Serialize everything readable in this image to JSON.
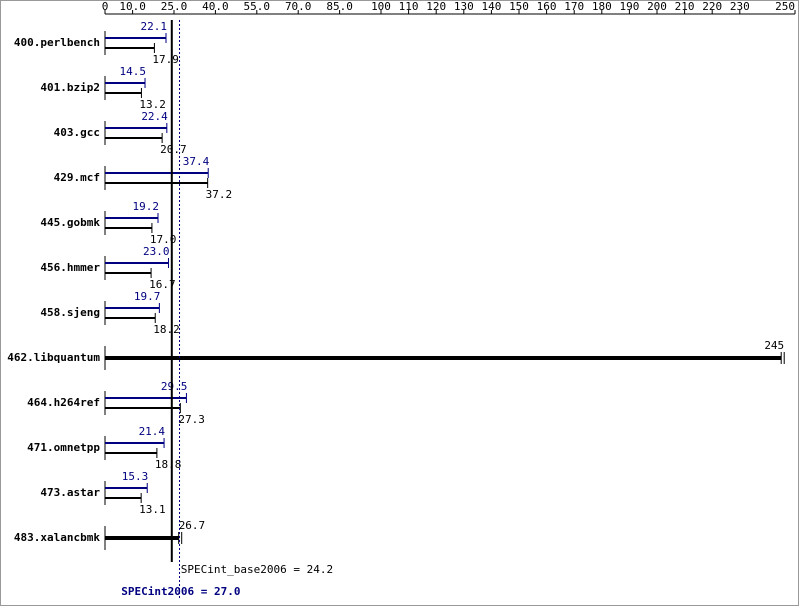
{
  "chart_data": {
    "type": "bar",
    "orientation": "horizontal",
    "categories": [
      "400.perlbench",
      "401.bzip2",
      "403.gcc",
      "429.mcf",
      "445.gobmk",
      "456.hmmer",
      "458.sjeng",
      "462.libquantum",
      "464.h264ref",
      "471.omnetpp",
      "473.astar",
      "483.xalancbmk"
    ],
    "series": [
      {
        "color": "#000080",
        "values": [
          22.1,
          14.5,
          22.4,
          37.4,
          19.2,
          23.0,
          19.7,
          null,
          29.5,
          21.4,
          15.3,
          null
        ],
        "value_labels": [
          "22.1",
          "14.5",
          "22.4",
          "37.4",
          "19.2",
          "23.0",
          "19.7",
          null,
          "29.5",
          "21.4",
          "15.3",
          null
        ]
      },
      {
        "color": "#000000",
        "values": [
          17.9,
          13.2,
          20.7,
          37.2,
          17.0,
          16.7,
          18.2,
          245,
          27.3,
          18.8,
          13.1,
          26.7
        ],
        "value_labels": [
          "17.9",
          "13.2",
          "20.7",
          "37.2",
          "17.0",
          "16.7",
          "18.2",
          "245",
          "27.3",
          "18.8",
          "13.1",
          "26.7"
        ]
      }
    ],
    "xlim": [
      0,
      250
    ],
    "xticks": [
      0,
      {
        "value": 10,
        "label": "10.0"
      },
      {
        "value": 25,
        "label": "25.0"
      },
      {
        "value": 40,
        "label": "40.0"
      },
      {
        "value": 55,
        "label": "55.0"
      },
      {
        "value": 70,
        "label": "70.0"
      },
      {
        "value": 85,
        "label": "85.0"
      },
      100,
      110,
      120,
      130,
      140,
      150,
      160,
      170,
      180,
      190,
      200,
      210,
      220,
      230,
      250
    ],
    "reference_lines": [
      {
        "value": 24.2,
        "label": "SPECint_base2006 = 24.2",
        "color": "#000000",
        "style": "solid"
      },
      {
        "value": 27.0,
        "label": "SPECint2006 = 27.0",
        "color": "#000080",
        "style": "dotted"
      }
    ]
  }
}
